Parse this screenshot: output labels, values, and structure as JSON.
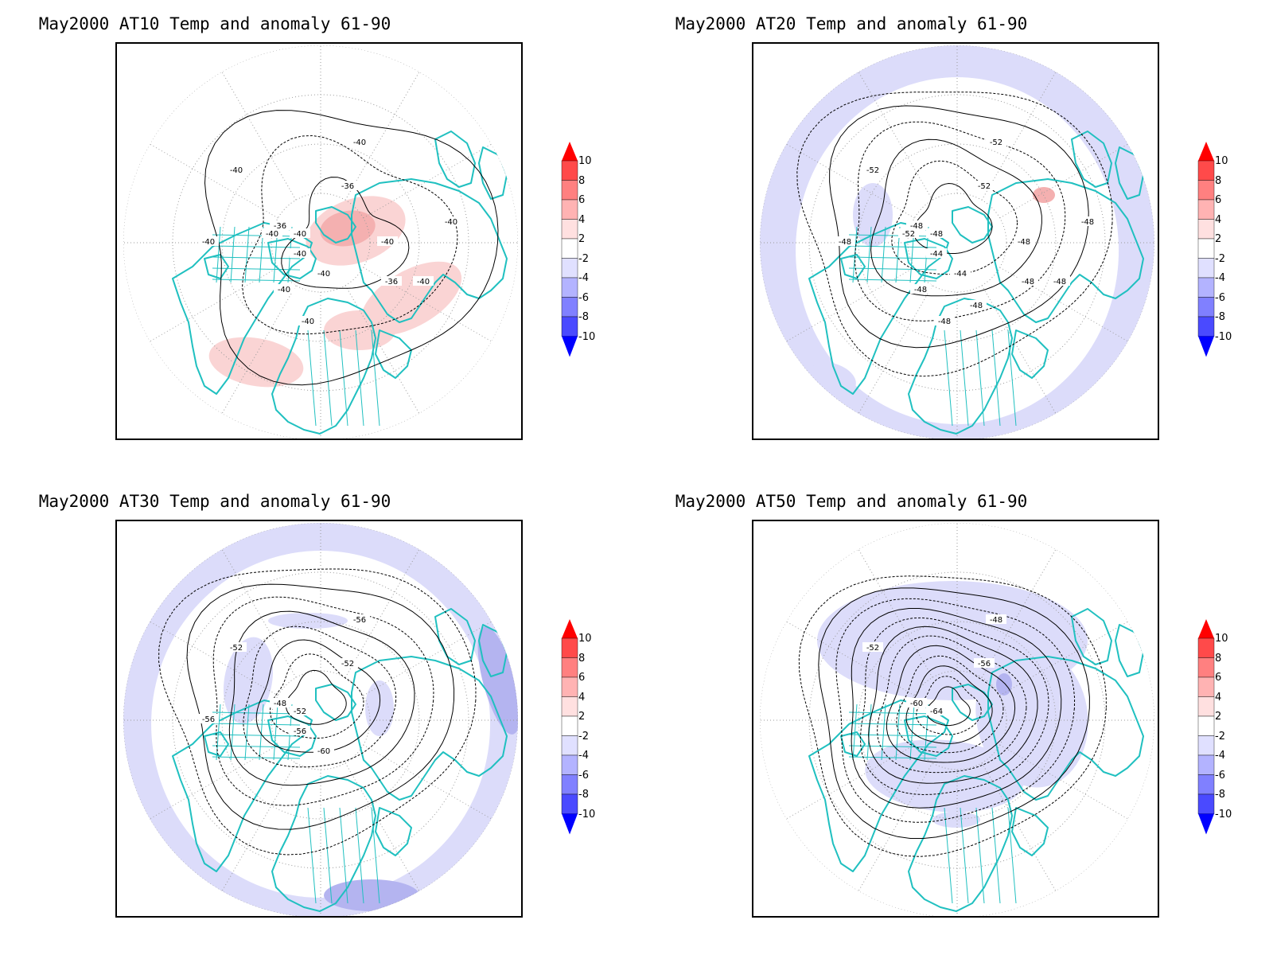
{
  "panels": [
    {
      "id": "at10",
      "title": "May2000 AT10 Temp and anomaly 61-90",
      "anomaly_sign": "warm",
      "contour_labels": [
        "-40",
        "-40",
        "-36",
        "-36",
        "-40",
        "-40",
        "-40",
        "-40",
        "-40",
        "-40",
        "-36",
        "-40",
        "-40",
        "-40",
        "-40"
      ]
    },
    {
      "id": "at20",
      "title": "May2000 AT20 Temp and anomaly 61-90",
      "anomaly_sign": "cold",
      "contour_labels": [
        "-52",
        "-52",
        "-52",
        "-48",
        "-48",
        "-48",
        "-44",
        "-44",
        "-48",
        "-48",
        "-48",
        "-48",
        "-48",
        "-52",
        "-48",
        "-48"
      ]
    },
    {
      "id": "at30",
      "title": "May2000 AT30 Temp and anomaly 61-90",
      "anomaly_sign": "cold",
      "contour_labels": [
        "-56",
        "-52",
        "-52",
        "-48",
        "-52",
        "-56",
        "-56",
        "-60"
      ]
    },
    {
      "id": "at50",
      "title": "May2000 AT50 Temp and anomaly 61-90",
      "anomaly_sign": "cold",
      "contour_labels": [
        "-48",
        "-52",
        "-56",
        "-60",
        "-64"
      ]
    }
  ],
  "colorbar": {
    "labels": [
      "10",
      "8",
      "6",
      "4",
      "2",
      "-2",
      "-4",
      "-6",
      "-8",
      "-10"
    ],
    "colors": [
      "#ff0000",
      "#ff4a4a",
      "#ff8080",
      "#ffb3b3",
      "#ffe0e0",
      "#ffffff",
      "#e0e0ff",
      "#b3b3ff",
      "#8080ff",
      "#4a4aff",
      "#0000ff"
    ]
  },
  "colors": {
    "coastline": "#20c0c0",
    "contour": "#000000",
    "grid": "#9a9a9a",
    "warm_anomaly": "#fad4d4",
    "warm_anomaly_strong": "#f4b0b0",
    "cold_anomaly": "#dcdcfa",
    "cold_anomaly_strong": "#b4b4f0"
  }
}
